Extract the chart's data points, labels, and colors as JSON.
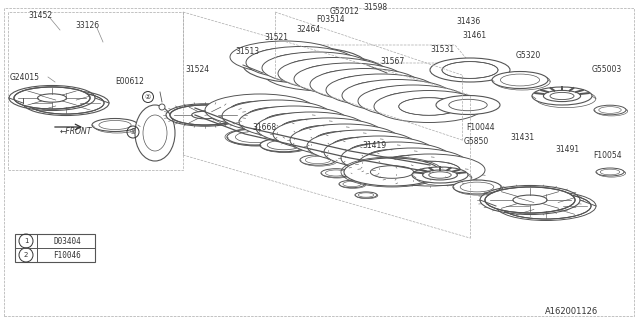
{
  "bg_color": "#ffffff",
  "line_color": "#555555",
  "text_color": "#333333",
  "diagram_id": "A162001126",
  "legend": [
    {
      "symbol": "1",
      "code": "D03404"
    },
    {
      "symbol": "2",
      "code": "F10046"
    }
  ]
}
